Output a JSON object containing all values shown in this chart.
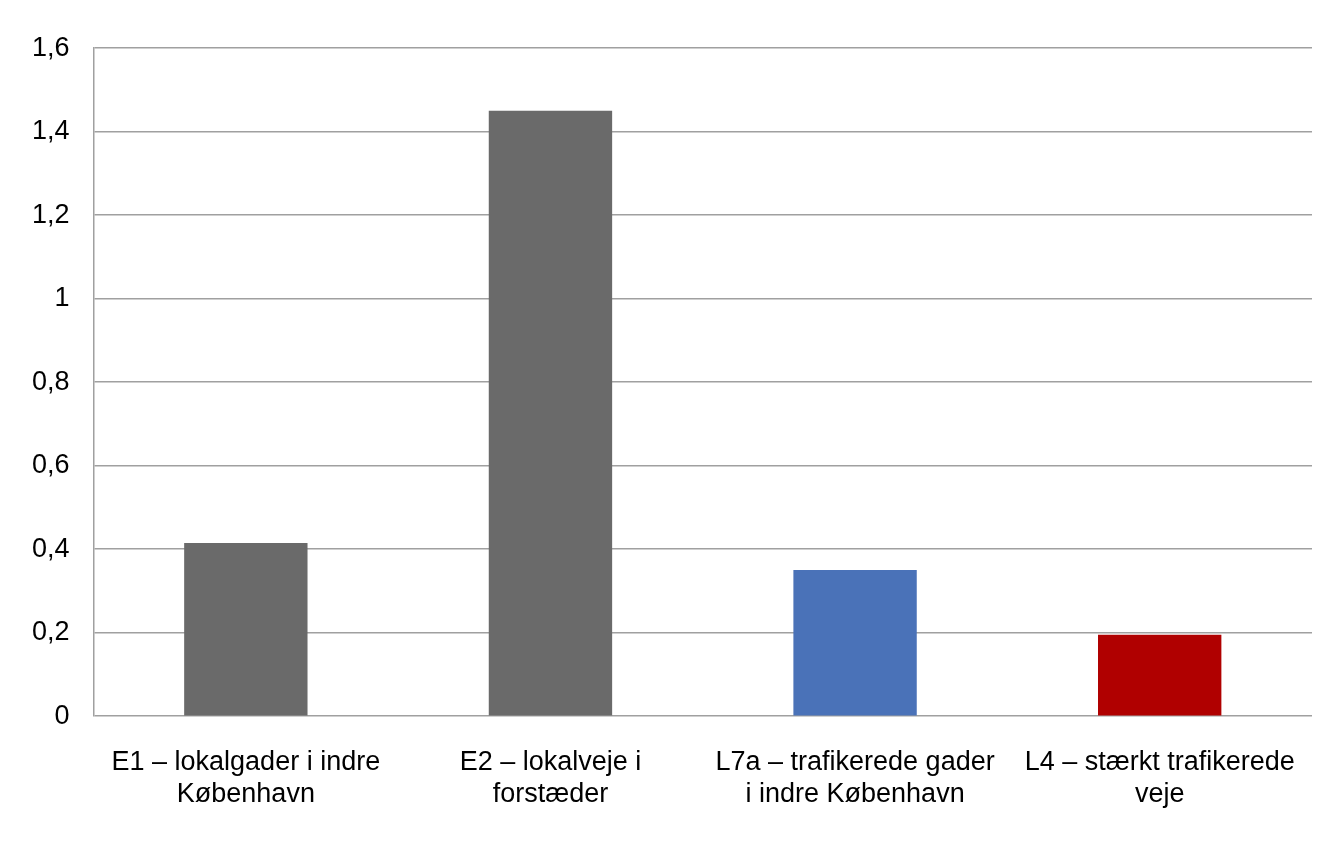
{
  "chart_data": {
    "type": "bar",
    "categories": [
      "E1 – lokalgader i indre København",
      "E2 – lokalveje i forstæder",
      "L7a – trafikerede gader i indre København",
      "L4 – stærkt trafikerede veje"
    ],
    "values": [
      0.415,
      1.45,
      0.35,
      0.195
    ],
    "colors": [
      "#6a6a6a",
      "#6a6a6a",
      "#4a72b8",
      "#b00000"
    ],
    "ylim": [
      0,
      1.6
    ],
    "yticks": [
      0,
      {
        "value": 0.2,
        "label": "0,2"
      },
      {
        "value": 0.4,
        "label": "0,4"
      },
      {
        "value": 0.6,
        "label": "0,6"
      },
      {
        "value": 0.8,
        "label": "0,8"
      },
      1,
      {
        "value": 1.2,
        "label": "1,2"
      },
      {
        "value": 1.4,
        "label": "1,4"
      },
      {
        "value": 1.6,
        "label": "1,6"
      }
    ],
    "grid": "y",
    "legend": false
  }
}
